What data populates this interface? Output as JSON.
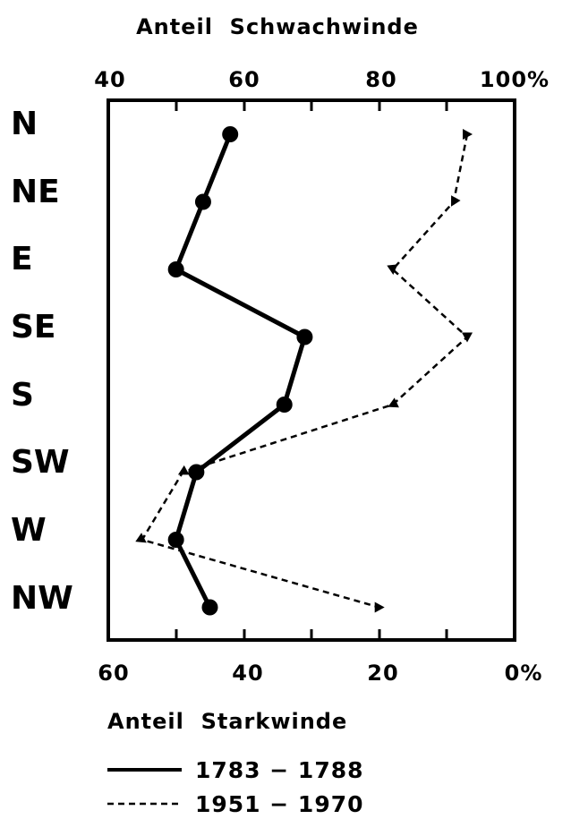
{
  "chart_data": {
    "type": "line",
    "top_axis": {
      "title": "Anteil  Schwachwinde",
      "range": [
        40,
        100
      ],
      "ticks": [
        40,
        60,
        80,
        100
      ],
      "tick_labels": [
        "40",
        "60",
        "80",
        "100%"
      ]
    },
    "bottom_axis": {
      "title": "Anteil  Starkwinde",
      "range": [
        60,
        0
      ],
      "ticks": [
        60,
        40,
        20,
        0
      ],
      "tick_labels": [
        "60",
        "40",
        "20",
        "0%"
      ]
    },
    "categories": [
      "N",
      "NE",
      "E",
      "SE",
      "S",
      "SW",
      "W",
      "NW"
    ],
    "series": [
      {
        "name": "1783 − 1788",
        "style": "solid",
        "marker": "circle",
        "color": "#000000",
        "values": [
          58,
          54,
          50,
          69,
          66,
          53,
          50,
          55
        ]
      },
      {
        "name": "1951 − 1970",
        "style": "dashed",
        "marker": "triangle",
        "color": "#000000",
        "values": [
          93,
          91,
          82,
          93,
          82,
          51,
          45,
          80
        ]
      }
    ],
    "legend_position": "bottom",
    "grid": false
  }
}
